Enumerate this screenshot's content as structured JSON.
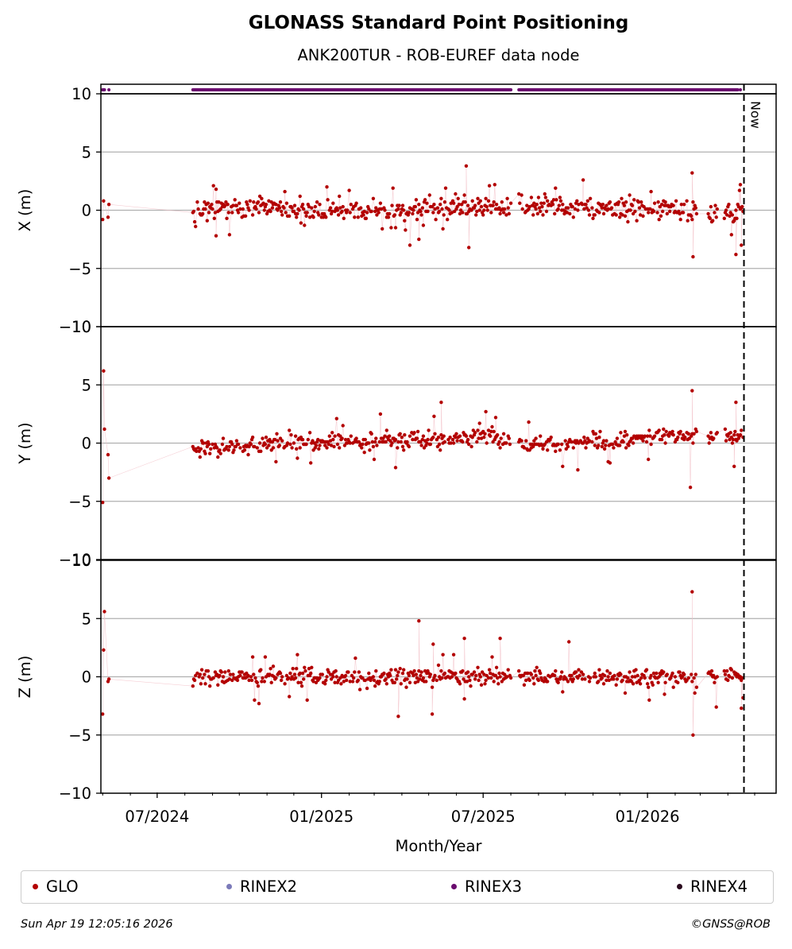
{
  "figure": {
    "title": "GLONASS Standard Point Positioning",
    "subtitle": "ANK200TUR - ROB-EUREF data node",
    "footer_date": "Sun Apr 19 12:05:16 2026",
    "footer_copyright": "©GNSS@ROB",
    "now_label": "Now"
  },
  "legend": [
    {
      "label": "GLO",
      "color": "#b30000"
    },
    {
      "label": "RINEX2",
      "color": "#7b7ab9"
    },
    {
      "label": "RINEX3",
      "color": "#6a0a6e"
    },
    {
      "label": "RINEX4",
      "color": "#2a0a1e"
    }
  ],
  "chart_data": {
    "type": "scatter",
    "title": "GLONASS Standard Point Positioning",
    "subtitle": "ANK200TUR - ROB-EUREF data node",
    "xlabel": "Month/Year",
    "x_range": [
      "2024-04-29",
      "2026-05-25"
    ],
    "x_ticks": [
      {
        "date": "2024-07-01",
        "label": "07/2024"
      },
      {
        "date": "2025-01-01",
        "label": "01/2025"
      },
      {
        "date": "2025-07-01",
        "label": "07/2025"
      },
      {
        "date": "2026-01-01",
        "label": "01/2026"
      }
    ],
    "minor_ticks": [
      "2024-05-01",
      "2024-06-01",
      "2024-08-01",
      "2024-09-01",
      "2024-10-01",
      "2024-11-01",
      "2024-12-01",
      "2025-02-01",
      "2025-03-01",
      "2025-04-01",
      "2025-05-01",
      "2025-06-01",
      "2025-08-01",
      "2025-09-01",
      "2025-10-01",
      "2025-11-01",
      "2025-12-01",
      "2026-02-01",
      "2026-03-01",
      "2026-04-01",
      "2026-05-01"
    ],
    "now_date": "2026-04-19",
    "grid": true,
    "panels": [
      {
        "ylabel": "X (m)",
        "ylim": [
          -10,
          10
        ],
        "yticks": [
          "10",
          "5",
          "0",
          "−5",
          "−10"
        ],
        "seed": 11,
        "noise": 0.7,
        "outliers": 0.05,
        "series": [
          {
            "name": "GLO",
            "color": "#b30000"
          }
        ],
        "early_points": [
          [
            "2024-05-01",
            -0.8
          ],
          [
            "2024-05-02",
            0.8
          ],
          [
            "2024-05-07",
            -0.6
          ],
          [
            "2024-05-08",
            0.5
          ]
        ],
        "trend": [
          [
            "2024-08-10",
            0.2
          ],
          [
            "2025-04-01",
            -0.1
          ],
          [
            "2025-06-15",
            0.2
          ],
          [
            "2025-10-01",
            0.3
          ],
          [
            "2026-01-01",
            0.1
          ],
          [
            "2026-04-19",
            -0.2
          ]
        ],
        "gaps": [
          [
            "2024-05-09",
            "2024-08-10"
          ],
          [
            "2025-08-01",
            "2025-08-10"
          ],
          [
            "2026-02-25",
            "2026-03-10"
          ],
          [
            "2026-03-20",
            "2026-03-28"
          ]
        ],
        "extremes": [
          [
            "2025-06-12",
            3.8
          ],
          [
            "2025-06-15",
            -3.2
          ],
          [
            "2026-02-20",
            3.2
          ],
          [
            "2026-02-21",
            -4.0
          ],
          [
            "2026-04-10",
            -3.8
          ],
          [
            "2026-04-15",
            2.2
          ],
          [
            "2026-04-16",
            -3.0
          ],
          [
            "2025-04-10",
            -3.0
          ],
          [
            "2024-09-05",
            -2.2
          ],
          [
            "2025-04-20",
            -2.5
          ]
        ]
      },
      {
        "ylabel": "Y (m)",
        "ylim": [
          -10,
          10
        ],
        "yticks": [
          "10",
          "5",
          "0",
          "−5",
          "−10"
        ],
        "seed": 23,
        "noise": 0.6,
        "outliers": 0.04,
        "series": [
          {
            "name": "GLO",
            "color": "#b30000"
          }
        ],
        "early_points": [
          [
            "2024-05-01",
            -5.1
          ],
          [
            "2024-05-02",
            6.2
          ],
          [
            "2024-05-03",
            1.2
          ],
          [
            "2024-05-07",
            -1.0
          ],
          [
            "2024-05-08",
            -3.0
          ]
        ],
        "trend": [
          [
            "2024-08-10",
            -0.4
          ],
          [
            "2024-12-01",
            0.0
          ],
          [
            "2025-06-01",
            0.3
          ],
          [
            "2025-07-01",
            0.8
          ],
          [
            "2025-08-15",
            0.0
          ],
          [
            "2025-12-01",
            0.0
          ],
          [
            "2026-01-15",
            0.7
          ],
          [
            "2026-04-19",
            0.6
          ]
        ],
        "gaps": [
          [
            "2024-05-09",
            "2024-08-10"
          ],
          [
            "2025-08-01",
            "2025-08-10"
          ],
          [
            "2026-02-25",
            "2026-03-10"
          ],
          [
            "2026-03-20",
            "2026-03-28"
          ]
        ],
        "extremes": [
          [
            "2025-05-15",
            3.5
          ],
          [
            "2025-03-25",
            -2.1
          ],
          [
            "2026-02-20",
            4.5
          ],
          [
            "2026-02-18",
            -3.8
          ],
          [
            "2026-04-10",
            3.5
          ],
          [
            "2026-04-08",
            -2.0
          ],
          [
            "2025-07-15",
            2.2
          ]
        ]
      },
      {
        "ylabel": "Z (m)",
        "ylim": [
          -10,
          10
        ],
        "yticks": [
          "10",
          "5",
          "0",
          "−5",
          "−10"
        ],
        "seed": 37,
        "noise": 0.6,
        "outliers": 0.06,
        "series": [
          {
            "name": "GLO",
            "color": "#b30000"
          }
        ],
        "early_points": [
          [
            "2024-05-01",
            -3.2
          ],
          [
            "2024-05-02",
            2.3
          ],
          [
            "2024-05-03",
            5.6
          ],
          [
            "2024-05-07",
            -0.4
          ],
          [
            "2024-05-08",
            -0.2
          ]
        ],
        "trend": [
          [
            "2024-08-10",
            0.0
          ],
          [
            "2025-03-01",
            0.0
          ],
          [
            "2025-07-01",
            0.1
          ],
          [
            "2026-01-01",
            -0.1
          ],
          [
            "2026-04-19",
            0.2
          ]
        ],
        "gaps": [
          [
            "2024-05-09",
            "2024-08-10"
          ],
          [
            "2025-08-01",
            "2025-08-10"
          ],
          [
            "2026-02-25",
            "2026-03-10"
          ],
          [
            "2026-03-20",
            "2026-03-28"
          ]
        ],
        "extremes": [
          [
            "2025-03-28",
            -3.4
          ],
          [
            "2025-04-20",
            4.8
          ],
          [
            "2025-05-05",
            -3.2
          ],
          [
            "2025-05-06",
            2.8
          ],
          [
            "2026-02-20",
            7.3
          ],
          [
            "2026-02-21",
            -5.0
          ],
          [
            "2026-04-16",
            -2.7
          ],
          [
            "2025-06-10",
            3.3
          ],
          [
            "2025-07-20",
            3.3
          ],
          [
            "2025-10-05",
            3.0
          ]
        ]
      }
    ],
    "availability_strip": {
      "series": "RINEX3",
      "color": "#6a0a6e",
      "coverage": [
        [
          "2024-05-01",
          "2024-05-03"
        ],
        [
          "2024-05-08",
          "2024-05-08"
        ],
        [
          "2024-08-10",
          "2025-08-01"
        ],
        [
          "2025-08-10",
          "2026-04-12"
        ],
        [
          "2026-04-15",
          "2026-04-15"
        ]
      ]
    }
  }
}
